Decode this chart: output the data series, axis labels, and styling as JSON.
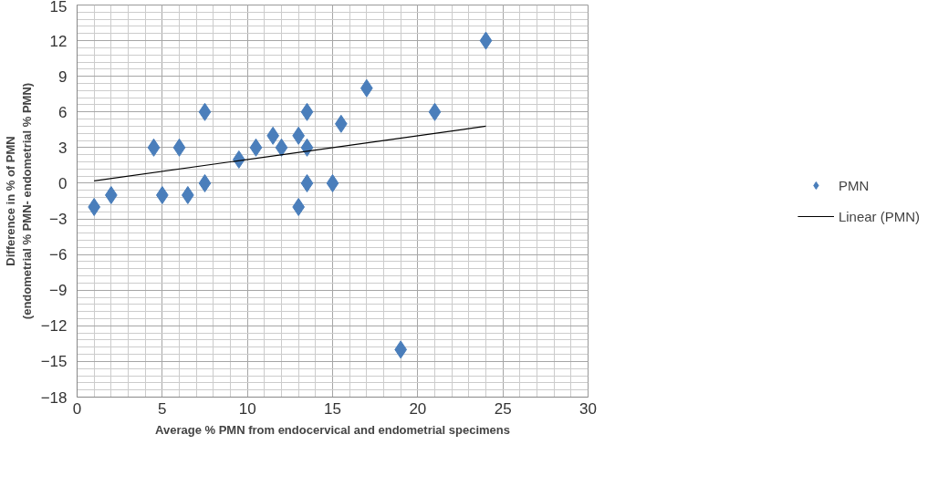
{
  "chart_data": {
    "type": "scatter",
    "xlabel": "Average % PMN from endocervical and endometrial specimens",
    "ylabel": "Difference in % of PMN\n(endometrial % PMN- endometrial % PMN)",
    "xlim": [
      0,
      30
    ],
    "xticks": [
      0,
      5,
      10,
      15,
      20,
      25,
      30
    ],
    "ylim": [
      -18,
      15
    ],
    "yticks": [
      -18,
      -15,
      -12,
      -9,
      -6,
      -3,
      0,
      3,
      6,
      9,
      12,
      15
    ],
    "grid": true,
    "legend": "right",
    "marker": "diamond",
    "series": [
      {
        "name": "PMN",
        "type": "scatter",
        "color": "#4a7ebb",
        "x": [
          1,
          2,
          4.5,
          5,
          6,
          6.5,
          7.5,
          7.5,
          9.5,
          10.5,
          11.5,
          12,
          13,
          13,
          13.5,
          13.5,
          13.5,
          15,
          15.5,
          17,
          19,
          21,
          24
        ],
        "values": [
          -2,
          -1,
          3,
          -1,
          3,
          -1,
          6,
          0,
          2,
          3,
          4,
          3,
          4,
          -2,
          6,
          3,
          0,
          0,
          5,
          8,
          -14,
          6,
          12
        ]
      },
      {
        "name": "Linear (PMN)",
        "type": "line",
        "color": "#000000",
        "line_style": "solid",
        "marker": "none",
        "x": [
          1,
          24
        ],
        "values": [
          0.2,
          4.8
        ]
      }
    ]
  }
}
